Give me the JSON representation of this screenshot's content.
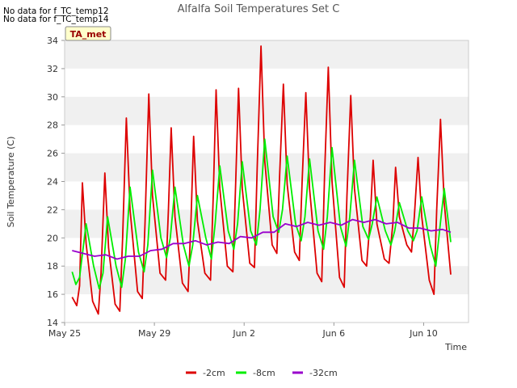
{
  "notes": [
    "No data for f_TC_temp12",
    "No data for f_TC_temp14"
  ],
  "badge": "TA_met",
  "chart_data": {
    "type": "line",
    "title": "Alfalfa Soil Temperatures Set C",
    "xlabel": "Time",
    "ylabel": "Soil Temperature (C)",
    "xlim": [
      "2018-05-25",
      "2018-06-12"
    ],
    "ylim": [
      14,
      34
    ],
    "yticks": [
      14,
      16,
      18,
      20,
      22,
      24,
      26,
      28,
      30,
      32,
      34
    ],
    "xticks": [
      {
        "label": "May 25",
        "date": "2018-05-25"
      },
      {
        "label": "May 29",
        "date": "2018-05-29"
      },
      {
        "label": "Jun 2",
        "date": "2018-06-02"
      },
      {
        "label": "Jun 6",
        "date": "2018-06-06"
      },
      {
        "label": "Jun 10",
        "date": "2018-06-10"
      }
    ],
    "grid": false,
    "background_bands": true,
    "legend_position": "bottom",
    "series": [
      {
        "name": "-2cm",
        "color": "#dd0000",
        "points": [
          [
            "2018-05-25 08:00",
            15.8
          ],
          [
            "2018-05-25 13:00",
            15.2
          ],
          [
            "2018-05-25 16:00",
            16.6
          ],
          [
            "2018-05-25 19:00",
            23.9
          ],
          [
            "2018-05-25 23:00",
            19.6
          ],
          [
            "2018-05-26 06:00",
            15.5
          ],
          [
            "2018-05-26 12:00",
            14.6
          ],
          [
            "2018-05-26 15:00",
            17.5
          ],
          [
            "2018-05-26 19:00",
            24.6
          ],
          [
            "2018-05-26 23:00",
            19.3
          ],
          [
            "2018-05-27 06:00",
            15.3
          ],
          [
            "2018-05-27 11:00",
            14.8
          ],
          [
            "2018-05-27 14:00",
            20.0
          ],
          [
            "2018-05-27 18:00",
            28.5
          ],
          [
            "2018-05-27 22:00",
            22.0
          ],
          [
            "2018-05-28 06:00",
            16.2
          ],
          [
            "2018-05-28 11:00",
            15.7
          ],
          [
            "2018-05-28 14:00",
            21.0
          ],
          [
            "2018-05-28 18:00",
            30.2
          ],
          [
            "2018-05-28 22:00",
            23.0
          ],
          [
            "2018-05-29 06:00",
            17.5
          ],
          [
            "2018-05-29 12:00",
            17.0
          ],
          [
            "2018-05-29 15:00",
            22.0
          ],
          [
            "2018-05-29 18:00",
            27.8
          ],
          [
            "2018-05-29 22:00",
            21.5
          ],
          [
            "2018-05-30 06:00",
            16.8
          ],
          [
            "2018-05-30 12:00",
            16.2
          ],
          [
            "2018-05-30 15:00",
            21.0
          ],
          [
            "2018-05-30 18:00",
            27.2
          ],
          [
            "2018-05-30 22:00",
            21.2
          ],
          [
            "2018-05-31 06:00",
            17.5
          ],
          [
            "2018-05-31 12:00",
            17.0
          ],
          [
            "2018-05-31 15:00",
            23.0
          ],
          [
            "2018-05-31 18:00",
            30.5
          ],
          [
            "2018-05-31 22:00",
            23.5
          ],
          [
            "2018-06-01 06:00",
            18.0
          ],
          [
            "2018-06-01 12:00",
            17.6
          ],
          [
            "2018-06-01 15:00",
            24.0
          ],
          [
            "2018-06-01 18:00",
            30.6
          ],
          [
            "2018-06-01 22:00",
            23.5
          ],
          [
            "2018-06-02 06:00",
            18.2
          ],
          [
            "2018-06-02 11:00",
            17.9
          ],
          [
            "2018-06-02 14:00",
            25.0
          ],
          [
            "2018-06-02 18:00",
            33.6
          ],
          [
            "2018-06-02 22:00",
            25.5
          ],
          [
            "2018-06-03 06:00",
            19.5
          ],
          [
            "2018-06-03 11:00",
            18.9
          ],
          [
            "2018-06-03 14:00",
            24.5
          ],
          [
            "2018-06-03 18:00",
            30.9
          ],
          [
            "2018-06-03 22:00",
            23.8
          ],
          [
            "2018-06-04 06:00",
            19.0
          ],
          [
            "2018-06-04 11:00",
            18.4
          ],
          [
            "2018-06-04 14:00",
            24.0
          ],
          [
            "2018-06-04 18:00",
            30.3
          ],
          [
            "2018-06-04 22:00",
            23.5
          ],
          [
            "2018-06-05 06:00",
            17.5
          ],
          [
            "2018-06-05 11:00",
            16.9
          ],
          [
            "2018-06-05 14:00",
            24.5
          ],
          [
            "2018-06-05 18:00",
            32.1
          ],
          [
            "2018-06-05 22:00",
            24.0
          ],
          [
            "2018-06-06 06:00",
            17.2
          ],
          [
            "2018-06-06 11:00",
            16.5
          ],
          [
            "2018-06-06 14:00",
            23.0
          ],
          [
            "2018-06-06 18:00",
            30.1
          ],
          [
            "2018-06-06 22:00",
            23.5
          ],
          [
            "2018-06-07 06:00",
            18.4
          ],
          [
            "2018-06-07 11:00",
            18.0
          ],
          [
            "2018-06-07 15:00",
            21.5
          ],
          [
            "2018-06-07 18:00",
            25.5
          ],
          [
            "2018-06-07 22:00",
            21.0
          ],
          [
            "2018-06-08 06:00",
            18.5
          ],
          [
            "2018-06-08 11:00",
            18.2
          ],
          [
            "2018-06-08 15:00",
            21.0
          ],
          [
            "2018-06-08 18:00",
            25.0
          ],
          [
            "2018-06-08 22:00",
            21.5
          ],
          [
            "2018-06-09 06:00",
            19.5
          ],
          [
            "2018-06-09 11:00",
            19.0
          ],
          [
            "2018-06-09 14:00",
            21.5
          ],
          [
            "2018-06-09 18:00",
            25.7
          ],
          [
            "2018-06-09 22:00",
            21.5
          ],
          [
            "2018-06-10 06:00",
            17.0
          ],
          [
            "2018-06-10 11:00",
            16.0
          ],
          [
            "2018-06-10 14:00",
            22.0
          ],
          [
            "2018-06-10 18:00",
            28.4
          ],
          [
            "2018-06-10 22:00",
            22.5
          ],
          [
            "2018-06-11 05:00",
            17.4
          ]
        ]
      },
      {
        "name": "-8cm",
        "color": "#00ee00",
        "points": [
          [
            "2018-05-25 08:00",
            17.6
          ],
          [
            "2018-05-25 12:00",
            16.7
          ],
          [
            "2018-05-25 16:00",
            17.2
          ],
          [
            "2018-05-25 23:00",
            21.0
          ],
          [
            "2018-05-26 07:00",
            18.0
          ],
          [
            "2018-05-26 13:00",
            16.4
          ],
          [
            "2018-05-26 17:00",
            17.5
          ],
          [
            "2018-05-26 22:00",
            21.5
          ],
          [
            "2018-05-27 07:00",
            18.0
          ],
          [
            "2018-05-27 13:00",
            16.5
          ],
          [
            "2018-05-27 17:00",
            18.5
          ],
          [
            "2018-05-27 22:00",
            23.6
          ],
          [
            "2018-05-28 07:00",
            19.0
          ],
          [
            "2018-05-28 13:00",
            17.6
          ],
          [
            "2018-05-28 17:00",
            19.5
          ],
          [
            "2018-05-28 22:00",
            24.8
          ],
          [
            "2018-05-29 07:00",
            20.0
          ],
          [
            "2018-05-29 13:00",
            18.6
          ],
          [
            "2018-05-29 17:00",
            20.0
          ],
          [
            "2018-05-29 22:00",
            23.6
          ],
          [
            "2018-05-30 07:00",
            19.5
          ],
          [
            "2018-05-30 13:00",
            18.0
          ],
          [
            "2018-05-30 17:00",
            19.5
          ],
          [
            "2018-05-30 22:00",
            23.0
          ],
          [
            "2018-05-31 07:00",
            20.0
          ],
          [
            "2018-05-31 13:00",
            18.5
          ],
          [
            "2018-05-31 17:00",
            21.0
          ],
          [
            "2018-05-31 22:00",
            25.1
          ],
          [
            "2018-06-01 07:00",
            20.5
          ],
          [
            "2018-06-01 13:00",
            19.2
          ],
          [
            "2018-06-01 17:00",
            21.0
          ],
          [
            "2018-06-01 22:00",
            25.4
          ],
          [
            "2018-06-02 07:00",
            20.5
          ],
          [
            "2018-06-02 13:00",
            19.5
          ],
          [
            "2018-06-02 17:00",
            22.0
          ],
          [
            "2018-06-02 22:00",
            27.0
          ],
          [
            "2018-06-03 07:00",
            21.5
          ],
          [
            "2018-06-03 13:00",
            20.4
          ],
          [
            "2018-06-03 17:00",
            22.0
          ],
          [
            "2018-06-03 22:00",
            25.8
          ],
          [
            "2018-06-04 07:00",
            21.0
          ],
          [
            "2018-06-04 13:00",
            19.8
          ],
          [
            "2018-06-04 17:00",
            21.5
          ],
          [
            "2018-06-04 22:00",
            25.6
          ],
          [
            "2018-06-05 07:00",
            20.5
          ],
          [
            "2018-06-05 13:00",
            19.2
          ],
          [
            "2018-06-05 17:00",
            21.5
          ],
          [
            "2018-06-05 22:00",
            26.4
          ],
          [
            "2018-06-06 07:00",
            20.8
          ],
          [
            "2018-06-06 13:00",
            19.4
          ],
          [
            "2018-06-06 17:00",
            21.5
          ],
          [
            "2018-06-06 22:00",
            25.5
          ],
          [
            "2018-06-07 07:00",
            20.8
          ],
          [
            "2018-06-07 13:00",
            19.9
          ],
          [
            "2018-06-07 17:00",
            21.0
          ],
          [
            "2018-06-07 22:00",
            22.9
          ],
          [
            "2018-06-08 07:00",
            20.5
          ],
          [
            "2018-06-08 13:00",
            19.5
          ],
          [
            "2018-06-08 17:00",
            20.5
          ],
          [
            "2018-06-08 22:00",
            22.5
          ],
          [
            "2018-06-09 07:00",
            20.5
          ],
          [
            "2018-06-09 13:00",
            19.8
          ],
          [
            "2018-06-09 17:00",
            20.5
          ],
          [
            "2018-06-09 22:00",
            22.9
          ],
          [
            "2018-06-10 07:00",
            19.5
          ],
          [
            "2018-06-10 13:00",
            18.0
          ],
          [
            "2018-06-10 17:00",
            20.5
          ],
          [
            "2018-06-10 22:00",
            23.5
          ],
          [
            "2018-06-11 05:00",
            19.7
          ]
        ]
      },
      {
        "name": "-32cm",
        "color": "#9900cc",
        "points": [
          [
            "2018-05-25 08:00",
            19.1
          ],
          [
            "2018-05-25 20:00",
            18.9
          ],
          [
            "2018-05-26 08:00",
            18.7
          ],
          [
            "2018-05-26 20:00",
            18.8
          ],
          [
            "2018-05-27 08:00",
            18.5
          ],
          [
            "2018-05-27 20:00",
            18.7
          ],
          [
            "2018-05-28 08:00",
            18.7
          ],
          [
            "2018-05-28 20:00",
            19.1
          ],
          [
            "2018-05-29 08:00",
            19.2
          ],
          [
            "2018-05-29 20:00",
            19.6
          ],
          [
            "2018-05-30 08:00",
            19.6
          ],
          [
            "2018-05-30 20:00",
            19.8
          ],
          [
            "2018-05-31 08:00",
            19.5
          ],
          [
            "2018-05-31 20:00",
            19.7
          ],
          [
            "2018-06-01 08:00",
            19.6
          ],
          [
            "2018-06-01 20:00",
            20.1
          ],
          [
            "2018-06-02 08:00",
            20.0
          ],
          [
            "2018-06-02 20:00",
            20.4
          ],
          [
            "2018-06-03 08:00",
            20.4
          ],
          [
            "2018-06-03 20:00",
            21.0
          ],
          [
            "2018-06-04 08:00",
            20.8
          ],
          [
            "2018-06-04 20:00",
            21.1
          ],
          [
            "2018-06-05 08:00",
            20.9
          ],
          [
            "2018-06-05 20:00",
            21.1
          ],
          [
            "2018-06-06 08:00",
            20.9
          ],
          [
            "2018-06-06 20:00",
            21.3
          ],
          [
            "2018-06-07 08:00",
            21.1
          ],
          [
            "2018-06-07 20:00",
            21.3
          ],
          [
            "2018-06-08 08:00",
            21.0
          ],
          [
            "2018-06-08 20:00",
            21.1
          ],
          [
            "2018-06-09 08:00",
            20.7
          ],
          [
            "2018-06-09 20:00",
            20.7
          ],
          [
            "2018-06-10 08:00",
            20.5
          ],
          [
            "2018-06-10 20:00",
            20.6
          ],
          [
            "2018-06-11 05:00",
            20.4
          ]
        ]
      }
    ]
  }
}
